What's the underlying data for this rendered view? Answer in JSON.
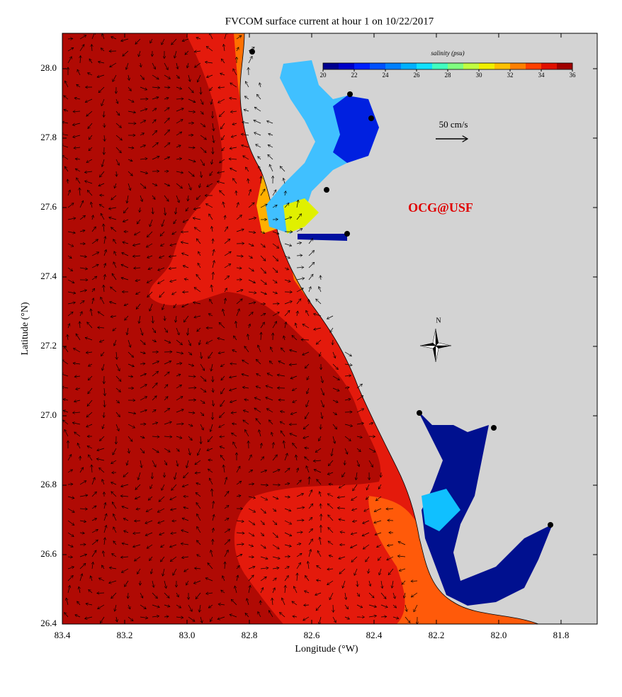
{
  "map": {
    "title": "FVCOM surface current at hour 1 on 10/22/2017",
    "xlabel": "Longitude (°W)",
    "ylabel": "Latitude (°N)",
    "xlim": [
      83.4,
      81.684
    ],
    "ylim": [
      26.4,
      28.102
    ],
    "xticks": [
      83.4,
      83.2,
      {
        "value": 83,
        "label": "83.0"
      },
      82.8,
      82.6,
      82.4,
      82.2,
      {
        "value": 82,
        "label": "82.0"
      },
      81.8
    ],
    "yticks": [
      26.4,
      26.6,
      26.8,
      {
        "value": 27,
        "label": "27.0"
      },
      27.2,
      27.4,
      27.6,
      27.8,
      {
        "value": 28,
        "label": "28.0"
      }
    ],
    "colorbar": {
      "label": "salinity (psu)",
      "lim": [
        20,
        36
      ],
      "ticks": [
        20,
        22,
        24,
        26,
        28,
        30,
        32,
        34,
        36
      ],
      "colors": [
        "#00008f",
        "#0000c8",
        "#0020ff",
        "#0050ff",
        "#0080ff",
        "#00b0ff",
        "#10e0ff",
        "#40ffc0",
        "#80ff80",
        "#c0ff40",
        "#f0f000",
        "#ffc000",
        "#ff8000",
        "#ff4000",
        "#e01000",
        "#a00000"
      ]
    },
    "scale_label": "50 cm/s",
    "credit": "OCG@USF",
    "north_label": "N"
  }
}
